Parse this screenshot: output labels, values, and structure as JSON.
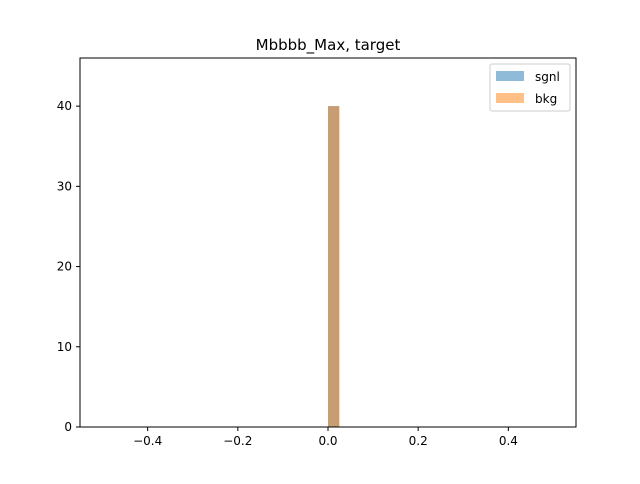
{
  "chart_data": {
    "type": "bar",
    "title": "Mbbbb_Max, target",
    "xlabel": "",
    "ylabel": "",
    "xlim": [
      -0.55,
      0.55
    ],
    "ylim": [
      0,
      46
    ],
    "x_ticks": [
      -0.4,
      -0.2,
      0.0,
      0.2,
      0.4
    ],
    "x_tick_labels": [
      "−0.4",
      "−0.2",
      "0.0",
      "0.2",
      "0.4"
    ],
    "y_ticks": [
      0,
      10,
      20,
      30,
      40
    ],
    "y_tick_labels": [
      "0",
      "10",
      "20",
      "30",
      "40"
    ],
    "grid": false,
    "legend_position": "top-right",
    "series": [
      {
        "name": "sgnl",
        "color": "#1f77b4",
        "opacity": 0.5,
        "bins": [
          {
            "x0": 0.0,
            "x1": 0.025,
            "value": 40
          }
        ]
      },
      {
        "name": "bkg",
        "color": "#ff7f0e",
        "opacity": 0.5,
        "bins": [
          {
            "x0": 0.0,
            "x1": 0.025,
            "value": 40
          }
        ]
      }
    ]
  }
}
